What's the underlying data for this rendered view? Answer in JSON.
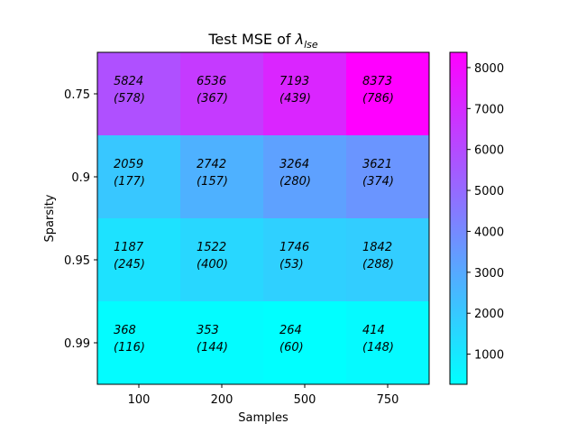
{
  "chart_data": {
    "type": "heatmap",
    "title": "Test MSE of ",
    "title_symbol": "λ",
    "title_subscript": "lse",
    "xlabel": "Samples",
    "ylabel": "Sparsity",
    "x_categories": [
      "100",
      "200",
      "500",
      "750"
    ],
    "y_categories": [
      "0.75",
      "0.9",
      "0.95",
      "0.99"
    ],
    "values": [
      [
        5824,
        6536,
        7193,
        8373
      ],
      [
        2059,
        2742,
        3264,
        3621
      ],
      [
        1187,
        1522,
        1746,
        1842
      ],
      [
        368,
        353,
        264,
        414
      ]
    ],
    "std": [
      [
        578,
        367,
        439,
        786
      ],
      [
        177,
        157,
        280,
        374
      ],
      [
        245,
        400,
        53,
        288
      ],
      [
        116,
        144,
        60,
        148
      ]
    ],
    "colormap": "cool",
    "colormap_start": "#00ffff",
    "colormap_end": "#ff00ff",
    "color_range": [
      264,
      8373
    ],
    "colorbar_ticks": [
      1000,
      2000,
      3000,
      4000,
      5000,
      6000,
      7000,
      8000
    ],
    "grid": false
  }
}
